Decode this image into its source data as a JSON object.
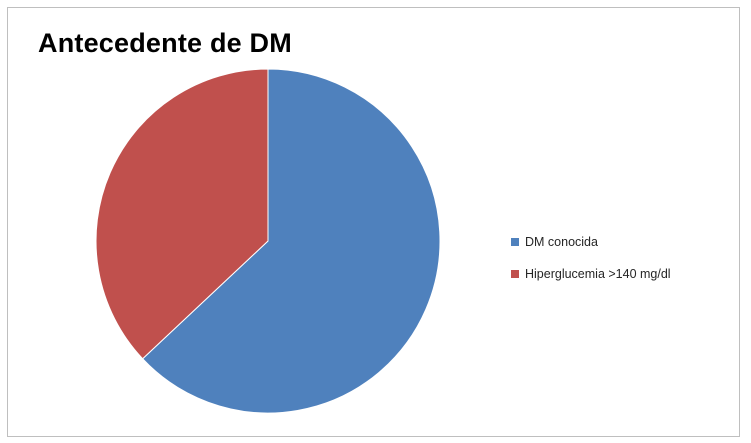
{
  "chart_data": {
    "type": "pie",
    "title": "Antecedente de DM",
    "slices": [
      {
        "label": "DM conocida",
        "value": 63,
        "color": "#4f81bd"
      },
      {
        "label": "Hiperglucemia >140 mg/dl",
        "value": 37,
        "color": "#c0504d"
      }
    ],
    "start_angle_deg": 0,
    "direction": "clockwise",
    "legend_position": "right"
  }
}
